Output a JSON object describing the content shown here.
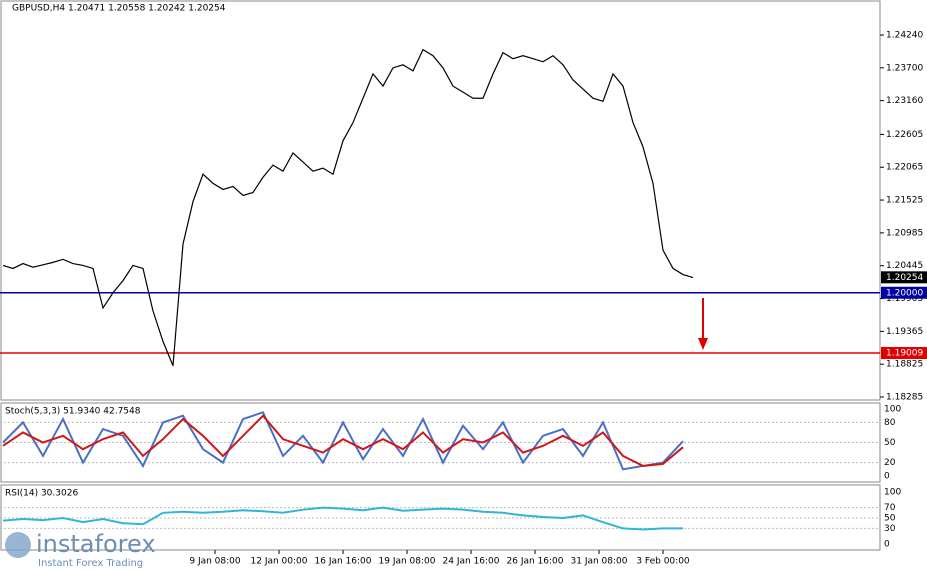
{
  "header": {
    "title": "GBPUSD,H4 1.20471 1.20558 1.20242 1.20254"
  },
  "price_pane": {
    "ylim": [
      1.18236,
      1.24816
    ],
    "yticks": [
      {
        "value": 1.2424,
        "label": "1.24240"
      },
      {
        "value": 1.237,
        "label": "1.23700"
      },
      {
        "value": 1.2316,
        "label": "1.23160"
      },
      {
        "value": 1.22605,
        "label": "1.22605"
      },
      {
        "value": 1.22065,
        "label": "1.22065"
      },
      {
        "value": 1.21525,
        "label": "1.21525"
      },
      {
        "value": 1.20985,
        "label": "1.20985"
      },
      {
        "value": 1.20445,
        "label": "1.20445"
      },
      {
        "value": 1.19905,
        "label": "1.19905"
      },
      {
        "value": 1.19365,
        "label": "1.19365"
      },
      {
        "value": 1.18825,
        "label": "1.18825"
      },
      {
        "value": 1.18285,
        "label": "1.18285"
      }
    ],
    "close": [
      1.2045,
      1.204,
      1.2048,
      1.2042,
      1.2046,
      1.205,
      1.2055,
      1.2048,
      1.2045,
      1.204,
      1.1975,
      1.2,
      1.202,
      1.2045,
      1.204,
      1.197,
      1.192,
      1.188,
      1.208,
      1.215,
      1.2195,
      1.218,
      1.217,
      1.2175,
      1.216,
      1.2165,
      1.219,
      1.221,
      1.22,
      1.223,
      1.2215,
      1.22,
      1.2205,
      1.2195,
      1.225,
      1.228,
      1.232,
      1.236,
      1.234,
      1.237,
      1.2375,
      1.2365,
      1.24,
      1.239,
      1.237,
      1.234,
      1.233,
      1.232,
      1.232,
      1.236,
      1.2395,
      1.2385,
      1.239,
      1.2385,
      1.238,
      1.239,
      1.2375,
      1.235,
      1.2335,
      1.232,
      1.2315,
      1.236,
      1.234,
      1.228,
      1.224,
      1.218,
      1.207,
      1.204,
      1.203,
      1.2025
    ],
    "levels": [
      {
        "value": 1.20254,
        "label": "1.20254",
        "color": "#000000"
      },
      {
        "value": 1.2,
        "label": "1.20000",
        "color": "#0000a0"
      },
      {
        "value": 1.19009,
        "label": "1.19009",
        "color": "#e00000"
      }
    ]
  },
  "stoch_pane": {
    "title": "Stoch(5,3,3) 51.9340 42.7548",
    "ylim": [
      0,
      100
    ],
    "yticks": [
      100,
      80,
      50,
      20,
      0
    ],
    "main": [
      50,
      80,
      30,
      85,
      20,
      70,
      60,
      15,
      80,
      90,
      40,
      20,
      85,
      95,
      30,
      60,
      20,
      80,
      25,
      70,
      30,
      85,
      20,
      75,
      40,
      80,
      20,
      60,
      70,
      30,
      80,
      10,
      15,
      20,
      52
    ],
    "signal": [
      45,
      65,
      50,
      60,
      40,
      55,
      65,
      30,
      55,
      85,
      60,
      30,
      60,
      90,
      55,
      45,
      35,
      55,
      40,
      55,
      40,
      65,
      35,
      55,
      50,
      65,
      35,
      45,
      60,
      45,
      65,
      30,
      15,
      18,
      43
    ]
  },
  "rsi_pane": {
    "title": "RSI(14) 30.3026",
    "ylim": [
      0,
      100
    ],
    "yticks": [
      100,
      70,
      50,
      30,
      0
    ],
    "values": [
      45,
      48,
      46,
      50,
      42,
      48,
      40,
      38,
      60,
      62,
      60,
      62,
      65,
      63,
      60,
      66,
      70,
      68,
      65,
      70,
      64,
      66,
      68,
      66,
      62,
      60,
      55,
      52,
      50,
      55,
      42,
      30,
      28,
      30,
      30
    ]
  },
  "time_axis": [
    "9 Jan 08:00",
    "12 Jan 00:00",
    "16 Jan 16:00",
    "19 Jan 08:00",
    "24 Jan 16:00",
    "26 Jan 16:00",
    "31 Jan 08:00",
    "3 Feb 00:00"
  ],
  "logo": {
    "name": "instaforex",
    "tagline": "Instant Forex Trading"
  }
}
